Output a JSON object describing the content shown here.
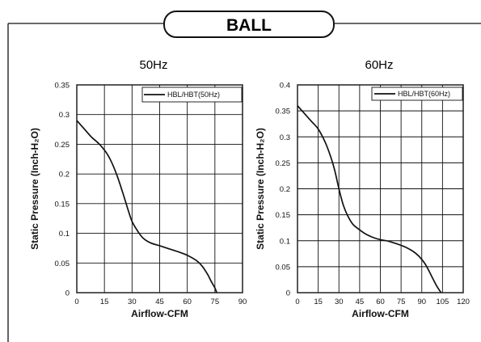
{
  "header": {
    "title": "BALL"
  },
  "chart_data": [
    {
      "type": "line",
      "title": "50Hz",
      "xlabel": "Airflow-CFM",
      "ylabel": "Static Pressure (Inch-H₂O)",
      "xlim": [
        0,
        90
      ],
      "ylim": [
        0,
        0.35
      ],
      "xticks": [
        "0",
        "15",
        "30",
        "45",
        "60",
        "75",
        "90"
      ],
      "yticks": [
        "0",
        "0.05",
        "0.1",
        "0.15",
        "0.2",
        "0.25",
        "0.3",
        "0.35"
      ],
      "grid": true,
      "legend_position": "top-right",
      "series": [
        {
          "name": "HBL/HBT(50Hz)",
          "x": [
            0,
            4,
            8,
            12,
            16,
            19,
            22,
            25,
            28,
            30,
            33,
            36,
            40,
            45,
            50,
            55,
            60,
            65,
            68,
            71,
            73,
            75,
            76
          ],
          "y": [
            0.29,
            0.276,
            0.262,
            0.251,
            0.236,
            0.219,
            0.196,
            0.168,
            0.138,
            0.12,
            0.104,
            0.092,
            0.084,
            0.079,
            0.074,
            0.069,
            0.063,
            0.054,
            0.045,
            0.031,
            0.019,
            0.008,
            0.0
          ]
        }
      ]
    },
    {
      "type": "line",
      "title": "60Hz",
      "xlabel": "Airflow-CFM",
      "ylabel": "Static Pressure (Inch-H₂O)",
      "xlim": [
        0,
        120
      ],
      "ylim": [
        0,
        0.4
      ],
      "xticks": [
        "0",
        "15",
        "30",
        "45",
        "60",
        "75",
        "90",
        "105",
        "120"
      ],
      "yticks": [
        "0",
        "0.05",
        "0.1",
        "0.15",
        "0.2",
        "0.25",
        "0.3",
        "0.35",
        "0.4"
      ],
      "grid": true,
      "legend_position": "top-right",
      "series": [
        {
          "name": "HBL/HBT(60Hz)",
          "x": [
            0,
            5,
            10,
            15,
            20,
            24,
            27,
            30,
            33,
            36,
            40,
            45,
            50,
            55,
            60,
            66,
            72,
            78,
            84,
            88,
            92,
            95,
            98,
            101,
            104
          ],
          "y": [
            0.36,
            0.345,
            0.33,
            0.315,
            0.29,
            0.262,
            0.235,
            0.2,
            0.17,
            0.15,
            0.132,
            0.121,
            0.112,
            0.106,
            0.102,
            0.099,
            0.094,
            0.088,
            0.079,
            0.07,
            0.057,
            0.043,
            0.027,
            0.012,
            0.0
          ]
        }
      ]
    }
  ]
}
